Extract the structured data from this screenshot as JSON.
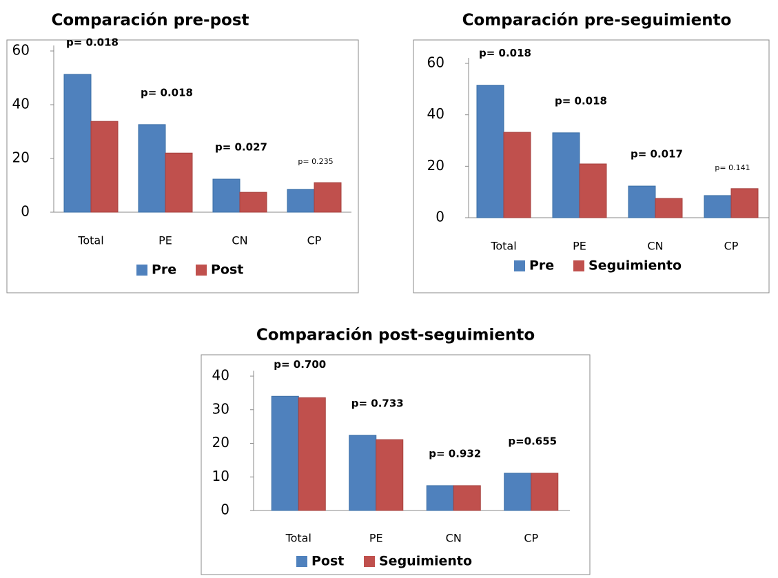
{
  "chart_data": [
    {
      "type": "bar",
      "title": "Comparación pre-post",
      "categories": [
        "Total",
        "PE",
        "CN",
        "CP"
      ],
      "series": [
        {
          "name": "Pre",
          "color": "#4f81bd",
          "values": [
            51.3,
            32.6,
            12.3,
            8.5
          ]
        },
        {
          "name": "Post",
          "color": "#c0504d",
          "values": [
            33.8,
            22.0,
            7.4,
            11.0
          ]
        }
      ],
      "annotations": [
        "p= 0.018",
        "p= 0.018",
        "p= 0.027",
        "p= 0.235"
      ],
      "ylim": [
        0,
        60
      ],
      "yticks": [
        0,
        20,
        40,
        60
      ]
    },
    {
      "type": "bar",
      "title": "Comparación pre-seguimiento",
      "categories": [
        "Total",
        "PE",
        "CN",
        "CP"
      ],
      "series": [
        {
          "name": "Pre",
          "color": "#4f81bd",
          "values": [
            51.5,
            33.0,
            12.3,
            8.6
          ]
        },
        {
          "name": "Seguimiento",
          "color": "#c0504d",
          "values": [
            33.2,
            20.9,
            7.5,
            11.3
          ]
        }
      ],
      "annotations": [
        "p= 0.018",
        "p= 0.018",
        "p= 0.017",
        "p= 0.141"
      ],
      "ylim": [
        0,
        60
      ],
      "yticks": [
        0,
        20,
        40,
        60
      ]
    },
    {
      "type": "bar",
      "title": "Comparación post-seguimiento",
      "categories": [
        "Total",
        "PE",
        "CN",
        "CP"
      ],
      "series": [
        {
          "name": "Post",
          "color": "#4f81bd",
          "values": [
            34.0,
            22.4,
            7.4,
            11.1
          ]
        },
        {
          "name": "Seguimiento",
          "color": "#c0504d",
          "values": [
            33.6,
            21.1,
            7.4,
            11.1
          ]
        }
      ],
      "annotations": [
        "p= 0.700",
        "p= 0.733",
        "p= 0.932",
        "p=0.655"
      ],
      "ylim": [
        0,
        40
      ],
      "yticks": [
        0,
        10,
        20,
        30,
        40
      ]
    }
  ]
}
